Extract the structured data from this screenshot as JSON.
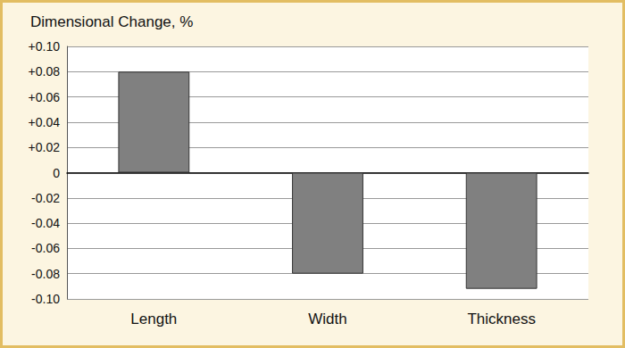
{
  "chart_data": {
    "type": "bar",
    "title": "Dimensional Change, %",
    "categories": [
      "Length",
      "Width",
      "Thickness"
    ],
    "values": [
      0.08,
      -0.08,
      -0.092
    ],
    "color": "#808080",
    "ylim": [
      -0.1,
      0.1
    ],
    "yticks": [
      {
        "value": -0.1,
        "label": "-0.10"
      },
      -0.08,
      -0.06,
      -0.04,
      -0.02,
      0,
      {
        "value": 0.02,
        "label": "+0.02"
      },
      {
        "value": 0.04,
        "label": "+0.04"
      },
      {
        "value": 0.06,
        "label": "+0.06"
      },
      {
        "value": 0.08,
        "label": "+0.08"
      },
      {
        "value": 0.1,
        "label": "+0.10"
      }
    ],
    "grid": true
  }
}
